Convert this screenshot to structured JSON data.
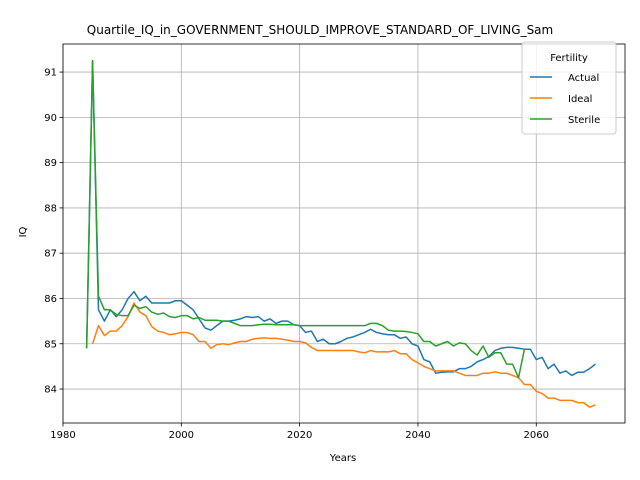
{
  "chart_data": {
    "type": "line",
    "title": "Quartile_IQ_in_GOVERNMENT_SHOULD_IMPROVE_STANDARD_OF_LIVING_Sam",
    "xlabel": "Years",
    "ylabel": "IQ",
    "xlim": [
      1980,
      2075
    ],
    "ylim": [
      83.25,
      91.62
    ],
    "xticks": [
      "1980",
      "2000",
      "2020",
      "2040",
      "2060"
    ],
    "yticks": [
      "84",
      "85",
      "86",
      "87",
      "88",
      "89",
      "90",
      "91"
    ],
    "grid": true,
    "legend": {
      "title": "Fertility",
      "placement": "top-right"
    },
    "series": [
      {
        "name": "Actual",
        "color": "#1f77b4",
        "x": [
          1984,
          1985,
          1986,
          1987,
          1988,
          1989,
          1990,
          1991,
          1992,
          1993,
          1994,
          1995,
          1996,
          1997,
          1998,
          1999,
          2000,
          2001,
          2002,
          2003,
          2004,
          2005,
          2006,
          2007,
          2008,
          2009,
          2010,
          2011,
          2012,
          2013,
          2014,
          2015,
          2016,
          2017,
          2018,
          2019,
          2020,
          2021,
          2022,
          2023,
          2024,
          2025,
          2026,
          2027,
          2028,
          2029,
          2030,
          2031,
          2032,
          2033,
          2034,
          2035,
          2036,
          2037,
          2038,
          2039,
          2040,
          2041,
          2042,
          2043,
          2044,
          2045,
          2046,
          2047,
          2048,
          2049,
          2050,
          2051,
          2052,
          2053,
          2054,
          2055,
          2056,
          2057,
          2058,
          2059,
          2060,
          2061,
          2062,
          2063,
          2064,
          2065,
          2066,
          2067,
          2068,
          2069,
          2070
        ],
        "values": [
          84.9,
          91.25,
          85.75,
          85.5,
          85.75,
          85.6,
          85.75,
          86.0,
          86.15,
          85.95,
          86.05,
          85.9,
          85.9,
          85.9,
          85.9,
          85.95,
          85.95,
          85.85,
          85.75,
          85.55,
          85.35,
          85.3,
          85.4,
          85.5,
          85.5,
          85.52,
          85.55,
          85.6,
          85.58,
          85.6,
          85.5,
          85.55,
          85.45,
          85.5,
          85.5,
          85.42,
          85.4,
          85.25,
          85.28,
          85.05,
          85.1,
          85.0,
          85.0,
          85.05,
          85.12,
          85.15,
          85.2,
          85.25,
          85.32,
          85.25,
          85.22,
          85.2,
          85.2,
          85.12,
          85.15,
          85.0,
          84.95,
          84.65,
          84.6,
          84.35,
          84.37,
          84.38,
          84.38,
          84.45,
          84.45,
          84.5,
          84.6,
          84.65,
          84.72,
          84.85,
          84.9,
          84.92,
          84.92,
          84.9,
          84.88,
          84.88,
          84.65,
          84.7,
          84.45,
          84.55,
          84.35,
          84.4,
          84.3,
          84.37,
          84.37,
          84.45,
          84.55
        ]
      },
      {
        "name": "Ideal",
        "color": "#ff7f0e",
        "x": [
          1985,
          1986,
          1987,
          1988,
          1989,
          1990,
          1991,
          1992,
          1993,
          1994,
          1995,
          1996,
          1997,
          1998,
          1999,
          2000,
          2001,
          2002,
          2003,
          2004,
          2005,
          2006,
          2007,
          2008,
          2009,
          2010,
          2011,
          2012,
          2013,
          2014,
          2015,
          2016,
          2017,
          2018,
          2019,
          2020,
          2021,
          2022,
          2023,
          2024,
          2025,
          2026,
          2027,
          2028,
          2029,
          2030,
          2031,
          2032,
          2033,
          2034,
          2035,
          2036,
          2037,
          2038,
          2039,
          2040,
          2041,
          2042,
          2043,
          2044,
          2045,
          2046,
          2047,
          2048,
          2049,
          2050,
          2051,
          2052,
          2053,
          2054,
          2055,
          2056,
          2057,
          2058,
          2059,
          2060,
          2061,
          2062,
          2063,
          2064,
          2065,
          2066,
          2067,
          2068,
          2069,
          2070
        ],
        "values": [
          85.0,
          85.4,
          85.18,
          85.28,
          85.28,
          85.4,
          85.6,
          85.9,
          85.7,
          85.62,
          85.38,
          85.28,
          85.25,
          85.2,
          85.22,
          85.25,
          85.25,
          85.2,
          85.05,
          85.05,
          84.9,
          84.98,
          85.0,
          84.98,
          85.02,
          85.05,
          85.05,
          85.1,
          85.12,
          85.13,
          85.12,
          85.12,
          85.1,
          85.08,
          85.05,
          85.05,
          85.02,
          84.92,
          84.85,
          84.85,
          84.85,
          84.85,
          84.85,
          84.85,
          84.85,
          84.82,
          84.8,
          84.85,
          84.82,
          84.82,
          84.82,
          84.85,
          84.78,
          84.78,
          84.65,
          84.58,
          84.5,
          84.45,
          84.4,
          84.4,
          84.4,
          84.4,
          84.35,
          84.3,
          84.3,
          84.3,
          84.35,
          84.35,
          84.38,
          84.35,
          84.35,
          84.3,
          84.25,
          84.1,
          84.1,
          83.95,
          83.9,
          83.8,
          83.8,
          83.75,
          83.75,
          83.75,
          83.7,
          83.7,
          83.6,
          83.65
        ]
      },
      {
        "name": "Sterile",
        "color": "#2ca02c",
        "x": [
          1984,
          1985,
          1986,
          1987,
          1988,
          1989,
          1990,
          1991,
          1992,
          1993,
          1994,
          1995,
          1996,
          1997,
          1998,
          1999,
          2000,
          2001,
          2002,
          2003,
          2004,
          2005,
          2006,
          2007,
          2008,
          2009,
          2010,
          2011,
          2012,
          2013,
          2014,
          2015,
          2016,
          2017,
          2018,
          2019,
          2020,
          2021,
          2022,
          2023,
          2024,
          2025,
          2026,
          2027,
          2028,
          2029,
          2030,
          2031,
          2032,
          2033,
          2034,
          2035,
          2036,
          2037,
          2038,
          2039,
          2040,
          2041,
          2042,
          2043,
          2044,
          2045,
          2046,
          2047,
          2048,
          2049,
          2050,
          2051,
          2052,
          2053,
          2054,
          2055,
          2056,
          2057,
          2058
        ],
        "values": [
          84.9,
          91.25,
          86.05,
          85.75,
          85.75,
          85.65,
          85.62,
          85.62,
          85.85,
          85.78,
          85.82,
          85.7,
          85.65,
          85.68,
          85.6,
          85.58,
          85.62,
          85.62,
          85.55,
          85.58,
          85.52,
          85.52,
          85.52,
          85.5,
          85.5,
          85.45,
          85.4,
          85.4,
          85.4,
          85.42,
          85.43,
          85.43,
          85.42,
          85.42,
          85.42,
          85.42,
          85.4,
          85.4,
          85.4,
          85.4,
          85.4,
          85.4,
          85.4,
          85.4,
          85.4,
          85.4,
          85.4,
          85.4,
          85.45,
          85.45,
          85.4,
          85.3,
          85.28,
          85.28,
          85.27,
          85.25,
          85.22,
          85.05,
          85.05,
          84.95,
          85.0,
          85.05,
          84.95,
          85.02,
          85.0,
          84.85,
          84.75,
          84.95,
          84.7,
          84.8,
          84.8,
          84.55,
          84.55,
          84.25,
          84.88
        ]
      }
    ]
  }
}
